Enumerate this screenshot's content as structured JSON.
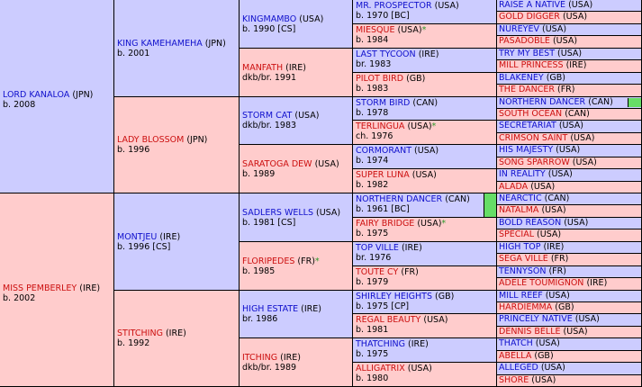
{
  "gen1": [
    {
      "name": "LORD KANALOA",
      "country": "(JPN)",
      "sub": "b. 2008",
      "sex": "m"
    },
    {
      "name": "MISS PEMBERLEY",
      "country": "(IRE)",
      "sub": "b. 2002",
      "sex": "f"
    }
  ],
  "gen2": [
    {
      "name": "KING KAMEHAMEHA",
      "country": "(JPN)",
      "sub": "b. 2001",
      "sex": "m"
    },
    {
      "name": "LADY BLOSSOM",
      "country": "(JPN)",
      "sub": "b. 1996",
      "sex": "f"
    },
    {
      "name": "MONTJEU",
      "country": "(IRE)",
      "sub": "b. 1996 [CS]",
      "sex": "m"
    },
    {
      "name": "STITCHING",
      "country": "(IRE)",
      "sub": "b. 1992",
      "sex": "f"
    }
  ],
  "gen3": [
    {
      "name": "KINGMAMBO",
      "country": "(USA)",
      "sub": "b. 1990 [CS]",
      "sex": "m"
    },
    {
      "name": "MANFATH",
      "country": "(IRE)",
      "sub": "dkb/br. 1991",
      "sex": "f"
    },
    {
      "name": "STORM CAT",
      "country": "(USA)",
      "sub": "dkb/br. 1983",
      "sex": "m"
    },
    {
      "name": "SARATOGA DEW",
      "country": "(USA)",
      "sub": "b. 1989",
      "sex": "f"
    },
    {
      "name": "SADLERS WELLS",
      "country": "(USA)",
      "sub": "b. 1981 [CS]",
      "sex": "m"
    },
    {
      "name": "FLORIPEDES",
      "country": "(FR)",
      "star": "*",
      "sub": "b. 1985",
      "sex": "f"
    },
    {
      "name": "HIGH ESTATE",
      "country": "(IRE)",
      "sub": "br. 1986",
      "sex": "m"
    },
    {
      "name": "ITCHING",
      "country": "(IRE)",
      "sub": "dkb/br. 1989",
      "sex": "f"
    }
  ],
  "gen4": [
    {
      "name": "MR. PROSPECTOR",
      "country": "(USA)",
      "sub": "b. 1970 [BC]",
      "sex": "m"
    },
    {
      "name": "MIESQUE",
      "country": "(USA)",
      "star": "*",
      "sub": "b. 1984",
      "sex": "f"
    },
    {
      "name": "LAST TYCOON",
      "country": "(IRE)",
      "sub": "br. 1983",
      "sex": "m"
    },
    {
      "name": "PILOT BIRD",
      "country": "(GB)",
      "sub": "b. 1983",
      "sex": "f"
    },
    {
      "name": "STORM BIRD",
      "country": "(CAN)",
      "sub": "b. 1978",
      "sex": "m"
    },
    {
      "name": "TERLINGUA",
      "country": "(USA)",
      "star": "*",
      "sub": "ch. 1976",
      "sex": "f"
    },
    {
      "name": "CORMORANT",
      "country": "(USA)",
      "sub": "b. 1974",
      "sex": "m"
    },
    {
      "name": "SUPER LUNA",
      "country": "(USA)",
      "sub": "b. 1982",
      "sex": "f"
    },
    {
      "name": "NORTHERN DANCER",
      "country": "(CAN)",
      "sub": "b. 1961 [BC]",
      "sex": "m",
      "flag": true
    },
    {
      "name": "FAIRY BRIDGE",
      "country": "(USA)",
      "star": "*",
      "sub": "b. 1975",
      "sex": "f"
    },
    {
      "name": "TOP VILLE",
      "country": "(IRE)",
      "sub": "br. 1976",
      "sex": "m"
    },
    {
      "name": "TOUTE CY",
      "country": "(FR)",
      "sub": "b. 1979",
      "sex": "f"
    },
    {
      "name": "SHIRLEY HEIGHTS",
      "country": "(GB)",
      "sub": "b. 1975 [CP]",
      "sex": "m"
    },
    {
      "name": "REGAL BEAUTY",
      "country": "(USA)",
      "sub": "b. 1981",
      "sex": "f"
    },
    {
      "name": "THATCHING",
      "country": "(IRE)",
      "sub": "b. 1975",
      "sex": "m"
    },
    {
      "name": "ALLIGATRIX",
      "country": "(USA)",
      "sub": "b. 1980",
      "sex": "f"
    }
  ],
  "gen5": [
    {
      "name": "RAISE A NATIVE",
      "country": "(USA)",
      "sex": "m"
    },
    {
      "name": "GOLD DIGGER",
      "country": "(USA)",
      "sex": "f"
    },
    {
      "name": "NUREYEV",
      "country": "(USA)",
      "sex": "m"
    },
    {
      "name": "PASADOBLE",
      "country": "(USA)",
      "sex": "f"
    },
    {
      "name": "TRY MY BEST",
      "country": "(USA)",
      "sex": "m"
    },
    {
      "name": "MILL PRINCESS",
      "country": "(IRE)",
      "sex": "f"
    },
    {
      "name": "BLAKENEY",
      "country": "(GB)",
      "sex": "m"
    },
    {
      "name": "THE DANCER",
      "country": "(FR)",
      "sex": "f"
    },
    {
      "name": "NORTHERN DANCER",
      "country": "(CAN)",
      "sex": "m",
      "flag": true
    },
    {
      "name": "SOUTH OCEAN",
      "country": "(CAN)",
      "sex": "f"
    },
    {
      "name": "SECRETARIAT",
      "country": "(USA)",
      "sex": "m"
    },
    {
      "name": "CRIMSON SAINT",
      "country": "(USA)",
      "sex": "f"
    },
    {
      "name": "HIS MAJESTY",
      "country": "(USA)",
      "sex": "m"
    },
    {
      "name": "SONG SPARROW",
      "country": "(USA)",
      "sex": "f"
    },
    {
      "name": "IN REALITY",
      "country": "(USA)",
      "sex": "m"
    },
    {
      "name": "ALADA",
      "country": "(USA)",
      "sex": "f"
    },
    {
      "name": "NEARCTIC",
      "country": "(CAN)",
      "sex": "m"
    },
    {
      "name": "NATALMA",
      "country": "(USA)",
      "sex": "f"
    },
    {
      "name": "BOLD REASON",
      "country": "(USA)",
      "sex": "m"
    },
    {
      "name": "SPECIAL",
      "country": "(USA)",
      "sex": "f"
    },
    {
      "name": "HIGH TOP",
      "country": "(IRE)",
      "sex": "m"
    },
    {
      "name": "SEGA VILLE",
      "country": "(FR)",
      "sex": "f"
    },
    {
      "name": "TENNYSON",
      "country": "(FR)",
      "sex": "m"
    },
    {
      "name": "ADELE TOUMIGNON",
      "country": "(IRE)",
      "sex": "f"
    },
    {
      "name": "MILL REEF",
      "country": "(USA)",
      "sex": "m"
    },
    {
      "name": "HARDIEMMA",
      "country": "(GB)",
      "sex": "f"
    },
    {
      "name": "PRINCELY NATIVE",
      "country": "(USA)",
      "sex": "m"
    },
    {
      "name": "DENNIS BELLE",
      "country": "(USA)",
      "sex": "f"
    },
    {
      "name": "THATCH",
      "country": "(USA)",
      "sex": "m"
    },
    {
      "name": "ABELLA",
      "country": "(GB)",
      "sex": "f"
    },
    {
      "name": "ALLEGED",
      "country": "(USA)",
      "sex": "m"
    },
    {
      "name": "SHORE",
      "country": "(USA)",
      "sex": "f"
    }
  ],
  "colors": {
    "sire_bg": "#ccccff",
    "dam_bg": "#ffcccc",
    "sire_text": "#1010cc",
    "dam_text": "#cc1010",
    "flag": "#66dd66"
  }
}
